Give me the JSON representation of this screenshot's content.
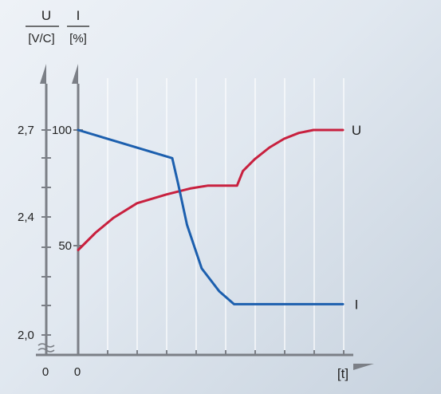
{
  "chart_data": {
    "type": "line",
    "x_axis": {
      "label": "[t]",
      "tick_label": "0"
    },
    "axis_left": {
      "name": "U",
      "unit": "[V/C]",
      "tick_labels": [
        "2,7",
        "2,4",
        "2,0",
        "0"
      ]
    },
    "axis_right": {
      "name": "I",
      "unit": "[%]",
      "tick_labels": [
        "100",
        "50"
      ]
    },
    "grid": true,
    "series": [
      {
        "name": "U",
        "color": "#c8203e",
        "axis": "left",
        "points": [
          [
            0,
            2.29
          ],
          [
            6,
            2.35
          ],
          [
            12,
            2.4
          ],
          [
            20,
            2.45
          ],
          [
            30,
            2.48
          ],
          [
            38,
            2.5
          ],
          [
            44,
            2.51
          ],
          [
            53,
            2.51
          ],
          [
            54,
            2.51
          ],
          [
            56,
            2.56
          ],
          [
            60,
            2.6
          ],
          [
            65,
            2.64
          ],
          [
            70,
            2.67
          ],
          [
            75,
            2.69
          ],
          [
            80,
            2.7
          ],
          [
            90,
            2.7
          ]
        ]
      },
      {
        "name": "I",
        "color": "#1c5fae",
        "axis": "right",
        "points": [
          [
            0,
            100
          ],
          [
            32,
            89
          ],
          [
            34,
            79
          ],
          [
            37,
            63
          ],
          [
            42,
            46
          ],
          [
            48,
            37
          ],
          [
            53,
            32
          ],
          [
            60,
            32
          ],
          [
            90,
            32
          ]
        ]
      }
    ]
  }
}
